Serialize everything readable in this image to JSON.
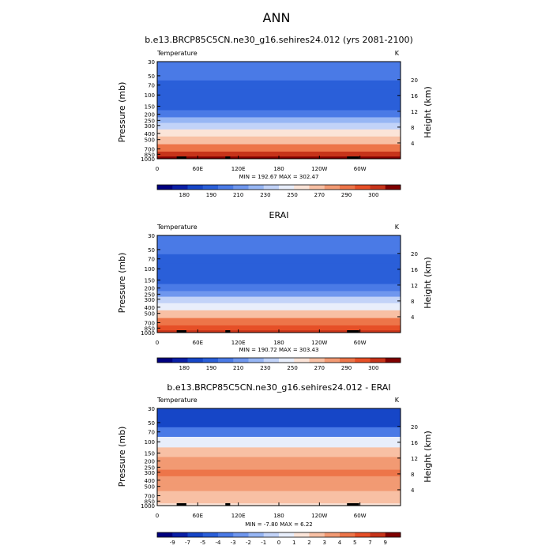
{
  "page_title": "ANN",
  "colors": {
    "temperature": [
      "#00007f",
      "#0a1fa6",
      "#1646c7",
      "#2a5fd9",
      "#4a7ae6",
      "#6f97ee",
      "#97b6f4",
      "#c2d3f8",
      "#e8eefb",
      "#fbe4d8",
      "#f8c0a4",
      "#f29a73",
      "#ed7549",
      "#e64f27",
      "#c7341a",
      "#7f0000"
    ],
    "difference": [
      "#00007f",
      "#0a1fa6",
      "#1646c7",
      "#2a5fd9",
      "#4a7ae6",
      "#6f97ee",
      "#97b6f4",
      "#c2d3f8",
      "#e8eefb",
      "#fbe4d8",
      "#f8c0a4",
      "#f29a73",
      "#ed7549",
      "#e64f27",
      "#c7341a",
      "#7f0000"
    ]
  },
  "chart_data": [
    {
      "type": "heatmap",
      "title": "b.e13.BRCP85C5CN.ne30_g16.sehires24.012 (yrs 2081-2100)",
      "left_label": "Temperature",
      "right_label": "K",
      "ylabel": "Pressure (mb)",
      "y2label": "Height (km)",
      "x_ticks": [
        "0",
        "60E",
        "120E",
        "180",
        "120W",
        "60W"
      ],
      "y_ticks": [
        "30",
        "50",
        "70",
        "100",
        "150",
        "200",
        "250",
        "300",
        "400",
        "500",
        "700",
        "850",
        "1000"
      ],
      "y2_ticks": [
        "20",
        "16",
        "12",
        "8",
        "4"
      ],
      "stats": "MIN = 192.67  MAX = 302.47",
      "colorbar_labels": [
        "180",
        "190",
        "210",
        "230",
        "250",
        "270",
        "290",
        "300"
      ],
      "field": [
        {
          "p": 30,
          "t": 215
        },
        {
          "p": 50,
          "t": 208
        },
        {
          "p": 70,
          "t": 204
        },
        {
          "p": 100,
          "t": 200
        },
        {
          "p": 150,
          "t": 205
        },
        {
          "p": 200,
          "t": 214
        },
        {
          "p": 250,
          "t": 226
        },
        {
          "p": 300,
          "t": 238
        },
        {
          "p": 400,
          "t": 252
        },
        {
          "p": 500,
          "t": 263
        },
        {
          "p": 700,
          "t": 279
        },
        {
          "p": 850,
          "t": 290
        },
        {
          "p": 1000,
          "t": 298
        }
      ]
    },
    {
      "type": "heatmap",
      "title": "ERAI",
      "left_label": "Temperature",
      "right_label": "K",
      "ylabel": "Pressure (mb)",
      "y2label": "Height (km)",
      "x_ticks": [
        "0",
        "60E",
        "120E",
        "180",
        "120W",
        "60W"
      ],
      "y_ticks": [
        "30",
        "50",
        "70",
        "100",
        "150",
        "200",
        "250",
        "300",
        "400",
        "500",
        "700",
        "850",
        "1000"
      ],
      "y2_ticks": [
        "20",
        "16",
        "12",
        "8",
        "4"
      ],
      "stats": "MIN = 190.72  MAX = 303.43",
      "colorbar_labels": [
        "180",
        "190",
        "210",
        "230",
        "250",
        "270",
        "290",
        "300"
      ],
      "field": [
        {
          "p": 30,
          "t": 213
        },
        {
          "p": 50,
          "t": 210
        },
        {
          "p": 70,
          "t": 206
        },
        {
          "p": 100,
          "t": 201
        },
        {
          "p": 150,
          "t": 206
        },
        {
          "p": 200,
          "t": 213
        },
        {
          "p": 250,
          "t": 222
        },
        {
          "p": 300,
          "t": 232
        },
        {
          "p": 400,
          "t": 246
        },
        {
          "p": 500,
          "t": 258
        },
        {
          "p": 700,
          "t": 274
        },
        {
          "p": 850,
          "t": 285
        },
        {
          "p": 1000,
          "t": 294
        }
      ]
    },
    {
      "type": "heatmap",
      "title": "b.e13.BRCP85C5CN.ne30_g16.sehires24.012 - ERAI",
      "left_label": "Temperature",
      "right_label": "K",
      "ylabel": "Pressure (mb)",
      "y2label": "Height (km)",
      "x_ticks": [
        "0",
        "60E",
        "120E",
        "180",
        "120W",
        "60W"
      ],
      "y_ticks": [
        "30",
        "50",
        "70",
        "100",
        "150",
        "200",
        "250",
        "300",
        "400",
        "500",
        "700",
        "850",
        "1000"
      ],
      "y2_ticks": [
        "20",
        "16",
        "12",
        "8",
        "4"
      ],
      "stats": "MIN =  -7.80  MAX =   6.22",
      "colorbar_labels": [
        "-9",
        "-7",
        "-5",
        "-4",
        "-3",
        "-2",
        "-1",
        "0",
        "1",
        "2",
        "3",
        "4",
        "5",
        "7",
        "9"
      ],
      "field": [
        {
          "p": 30,
          "t": -6
        },
        {
          "p": 50,
          "t": -6
        },
        {
          "p": 70,
          "t": -4
        },
        {
          "p": 100,
          "t": 1
        },
        {
          "p": 150,
          "t": 3
        },
        {
          "p": 200,
          "t": 4
        },
        {
          "p": 250,
          "t": 4
        },
        {
          "p": 300,
          "t": 5
        },
        {
          "p": 400,
          "t": 4
        },
        {
          "p": 500,
          "t": 4
        },
        {
          "p": 700,
          "t": 3
        },
        {
          "p": 850,
          "t": 3
        },
        {
          "p": 1000,
          "t": 2
        }
      ]
    }
  ]
}
